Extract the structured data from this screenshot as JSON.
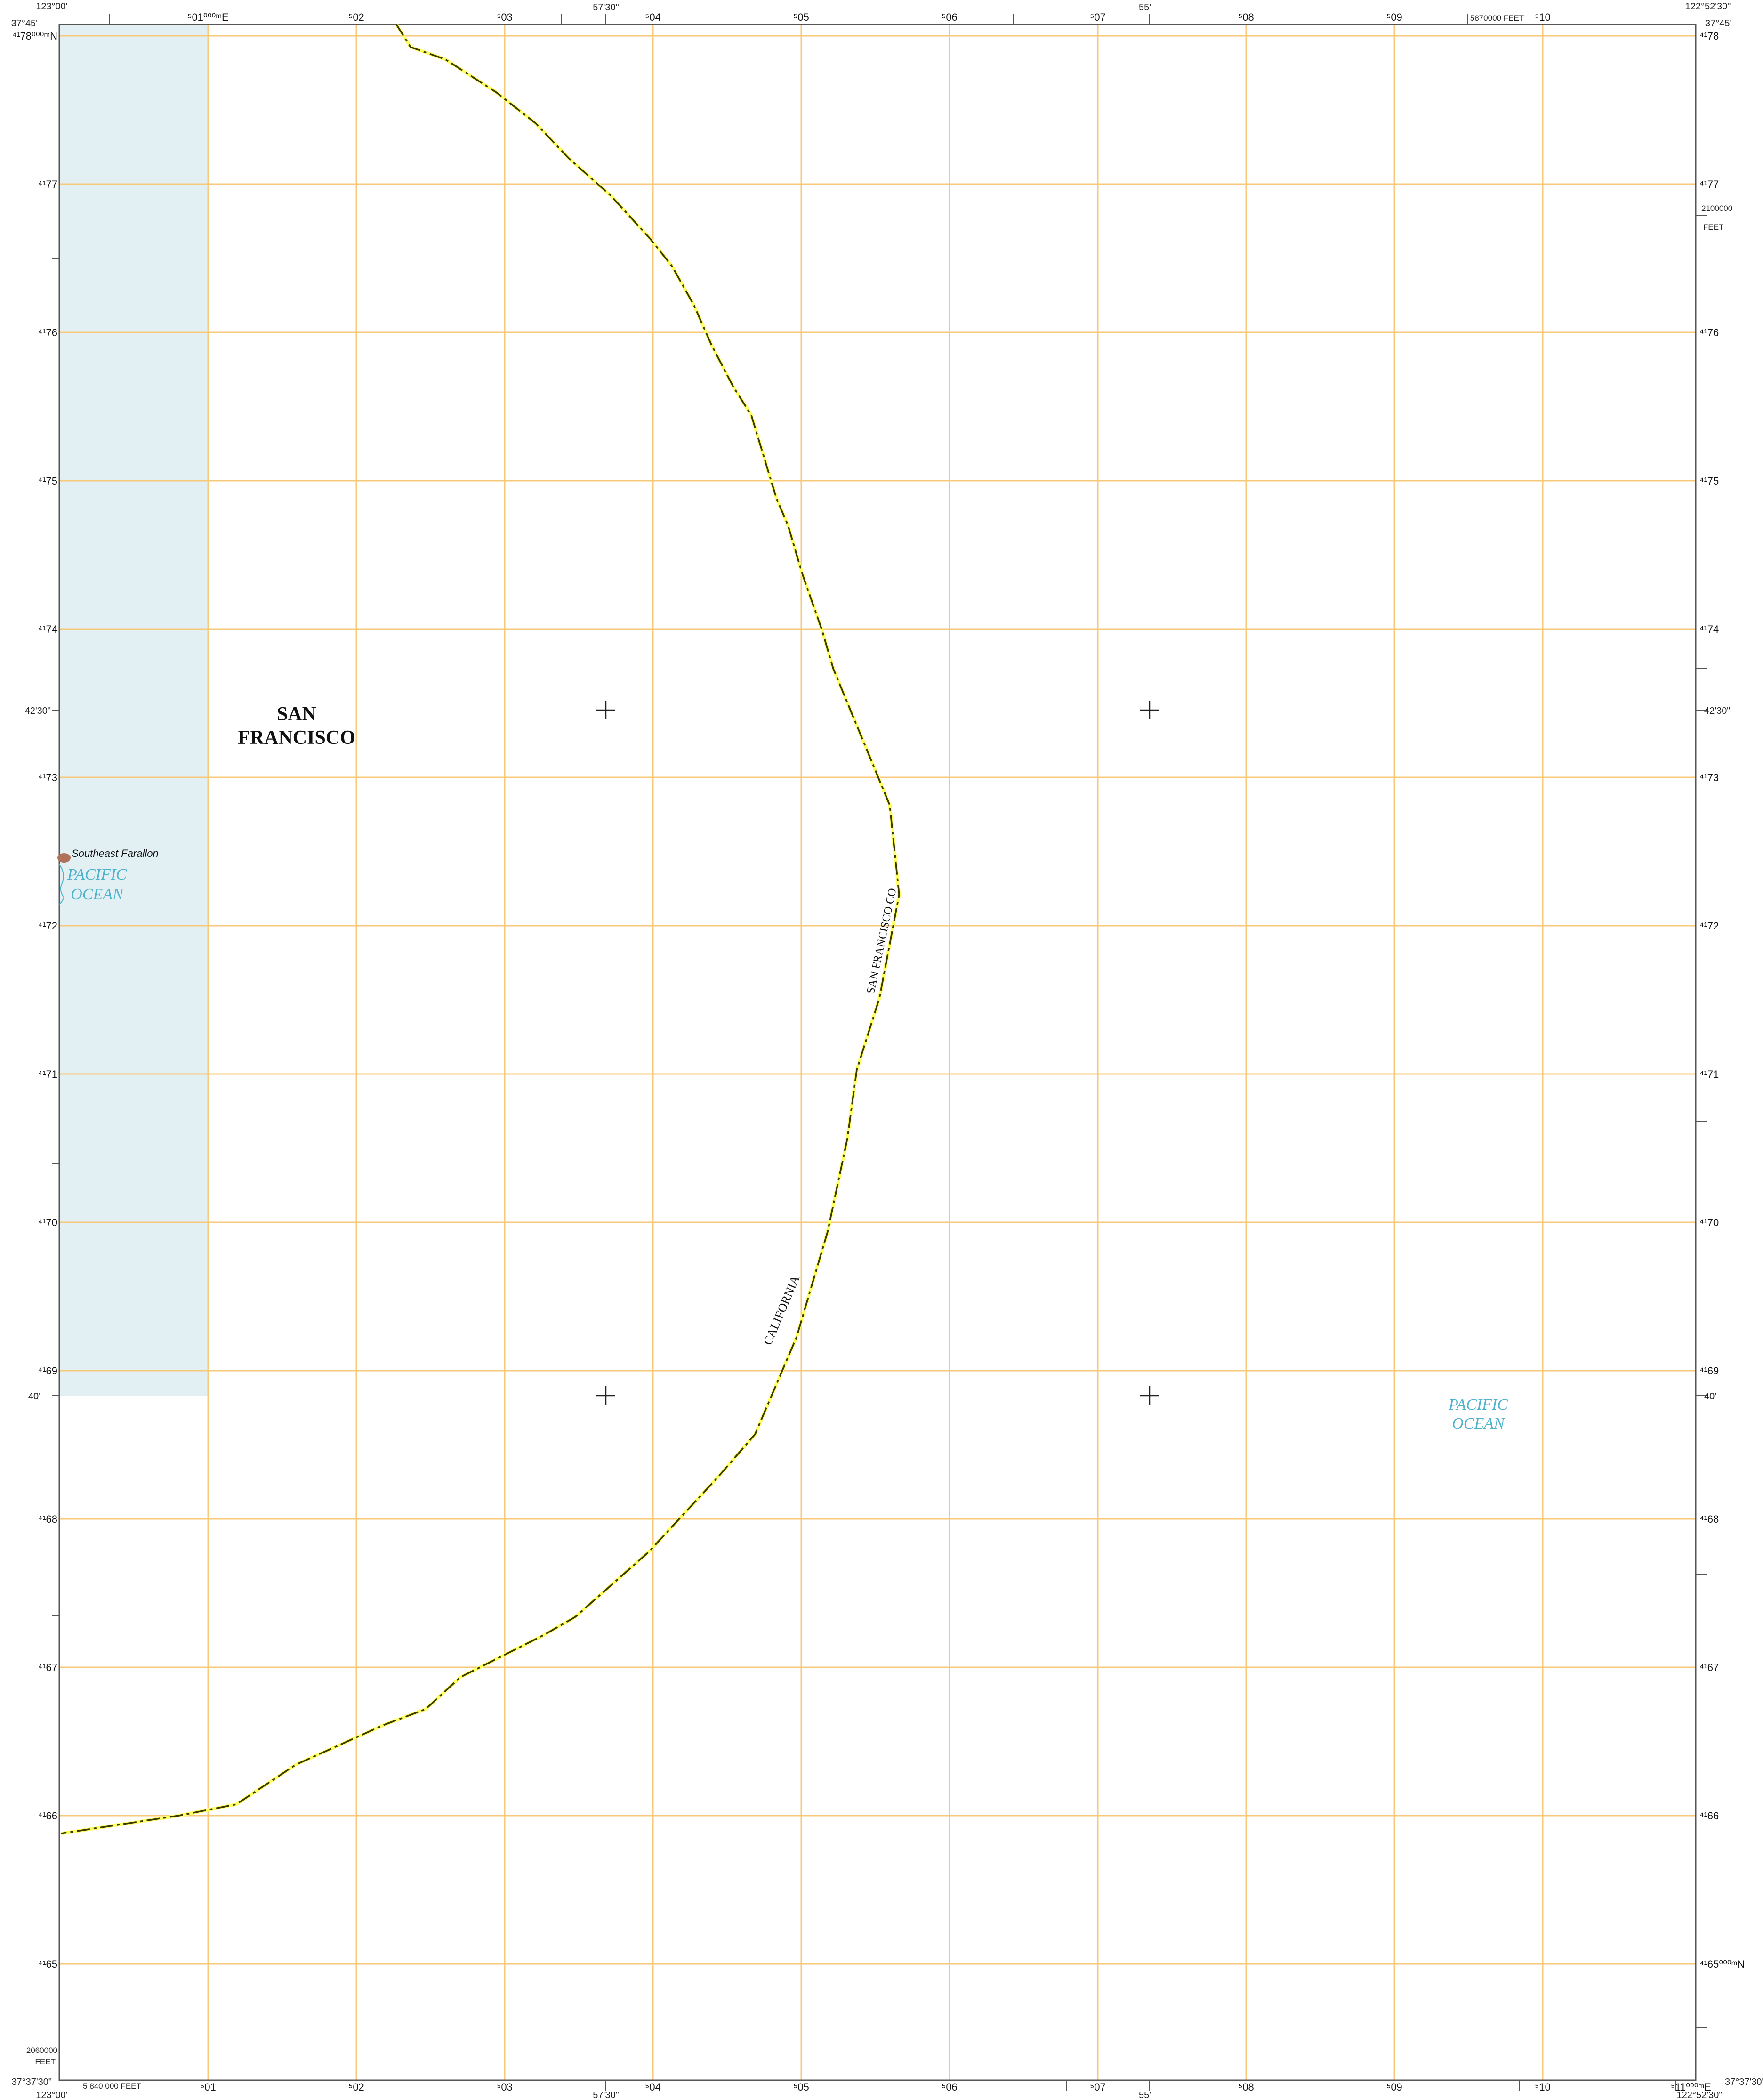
{
  "corners": {
    "top_left_lon": "123°00'",
    "top_right_lon": "122°52'30\"",
    "bottom_left_lon": "123°00'",
    "bottom_right_lon": "122°52'30\"",
    "top_left_lat": "37°45'",
    "top_right_lat": "37°45'",
    "bottom_left_lat": "37°37'30\"",
    "bottom_right_lat": "37°37'30\""
  },
  "mid_labels": {
    "top_lon_mid1": "57'30\"",
    "top_lon_mid2": "55'",
    "bottom_lon_mid1": "57'30\"",
    "bottom_lon_mid2": "55'",
    "left_lat_mid1": "42'30\"",
    "left_lat_mid2": "40'",
    "right_lat_mid1": "42'30\"",
    "right_lat_mid2": "40'"
  },
  "easting_labels": {
    "top": [
      "⁵01⁰⁰⁰ᵐE",
      "⁵02",
      "⁵03",
      "⁵04",
      "⁵05",
      "⁵06",
      "⁵07",
      "⁵08",
      "⁵09",
      "⁵10"
    ],
    "bottom": [
      "⁵01",
      "⁵02",
      "⁵03",
      "⁵04",
      "⁵05",
      "⁵06",
      "⁵07",
      "⁵08",
      "⁵09",
      "⁵10",
      "⁵11⁰⁰⁰ᵐE"
    ]
  },
  "northing_labels": {
    "left": [
      "⁴¹78⁰⁰⁰ᵐN",
      "⁴¹77",
      "⁴¹76",
      "⁴¹75",
      "⁴¹74",
      "⁴¹73",
      "⁴¹72",
      "⁴¹71",
      "⁴¹70",
      "⁴¹69",
      "⁴¹68",
      "⁴¹67",
      "⁴¹66",
      "⁴¹65"
    ],
    "right": [
      "⁴¹78",
      "⁴¹77",
      "⁴¹76",
      "⁴¹75",
      "⁴¹74",
      "⁴¹73",
      "⁴¹72",
      "⁴¹71",
      "⁴¹70",
      "⁴¹69",
      "⁴¹68",
      "⁴¹67",
      "⁴¹66",
      "⁴¹65⁰⁰⁰ᵐN"
    ]
  },
  "state_plane": {
    "top_feet": "5870000 FEET",
    "bottom_feet": "5 840 000 FEET",
    "right_value": "2100000",
    "right_unit": "FEET",
    "left_value": "2060000",
    "left_unit": "FEET"
  },
  "features": {
    "city_line1": "SAN",
    "city_line2": "FRANCISCO",
    "island": "Southeast Farallon",
    "ocean_left_line1": "PACIFIC",
    "ocean_left_line2": "OCEAN",
    "ocean_right_line1": "PACIFIC",
    "ocean_right_line2": "OCEAN",
    "boundary_county": "SAN FRANCISCO CO",
    "boundary_state": "CALIFORNIA"
  },
  "colors": {
    "grid": "#f8c87a",
    "water": "#e2f0f4",
    "water_text": "#4fb3cc",
    "boundary": "#3a3a00",
    "boundary_highlight": "#ffff66",
    "island": "#b0705a",
    "frame": "#555555"
  }
}
